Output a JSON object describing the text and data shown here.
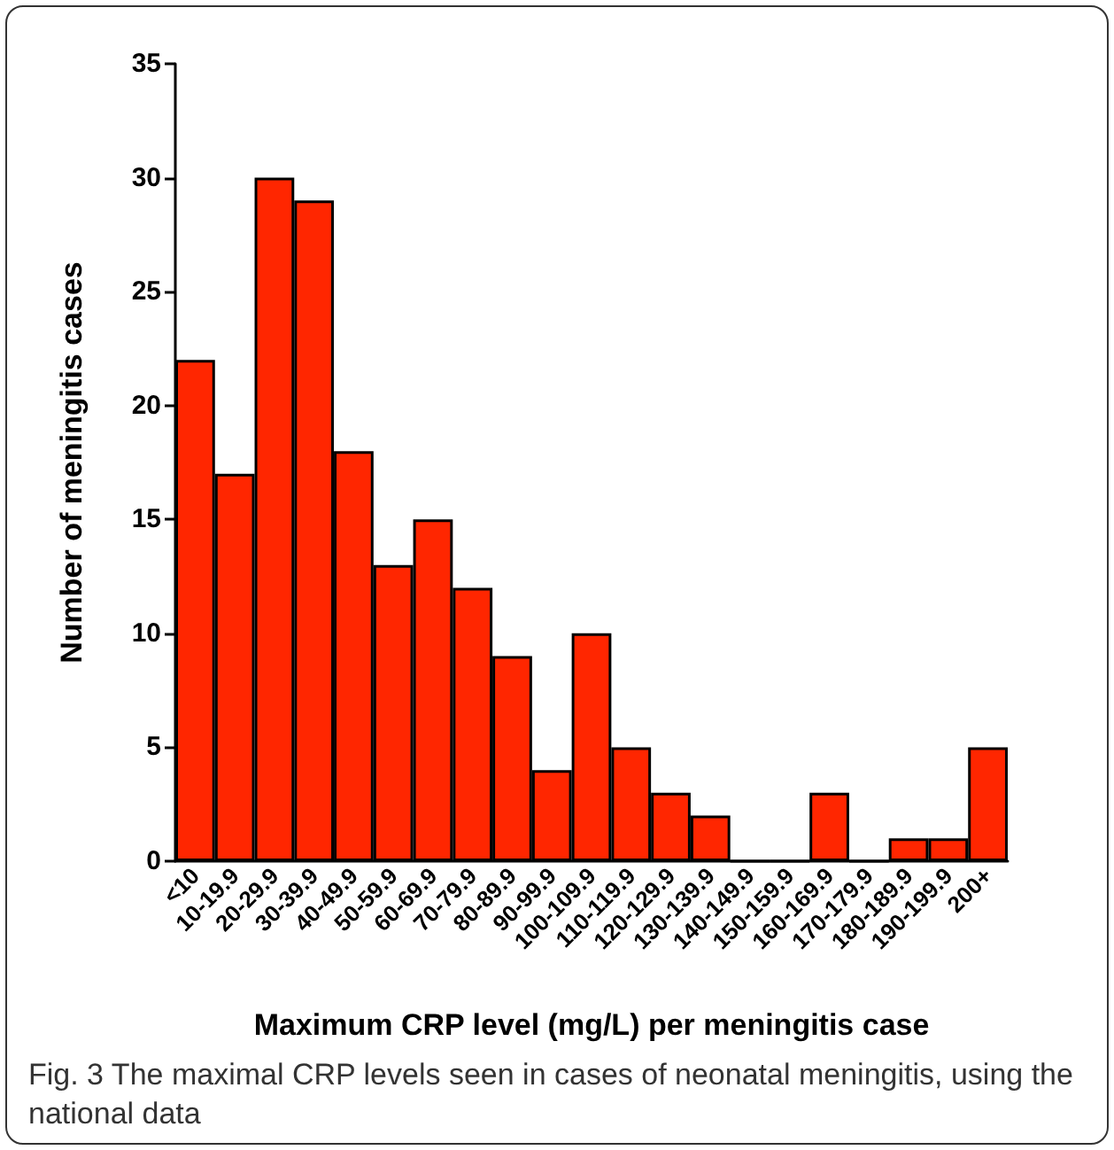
{
  "chart_data": {
    "type": "bar",
    "xlabel": "Maximum CRP level (mg/L) per meningitis case",
    "ylabel": "Number of meningitis cases",
    "categories": [
      "<10",
      "10-19.9",
      "20-29.9",
      "30-39.9",
      "40-49.9",
      "50-59.9",
      "60-69.9",
      "70-79.9",
      "80-89.9",
      "90-99.9",
      "100-109.9",
      "110-119.9",
      "120-129.9",
      "130-139.9",
      "140-149.9",
      "150-159.9",
      "160-169.9",
      "170-179.9",
      "180-189.9",
      "190-199.9",
      "200+"
    ],
    "values": [
      22,
      17,
      30,
      29,
      18,
      13,
      15,
      12,
      9,
      4,
      10,
      5,
      3,
      2,
      0,
      0,
      3,
      0,
      1,
      1,
      5
    ],
    "color": "#ff2600",
    "ylim": [
      0,
      35
    ],
    "yticks": [
      0,
      5,
      10,
      15,
      20,
      25,
      30,
      35
    ],
    "grid": false,
    "annotations": [
      "Fig. 3 The maximal CRP levels seen in cases of neonatal meningitis, using the national data"
    ]
  }
}
